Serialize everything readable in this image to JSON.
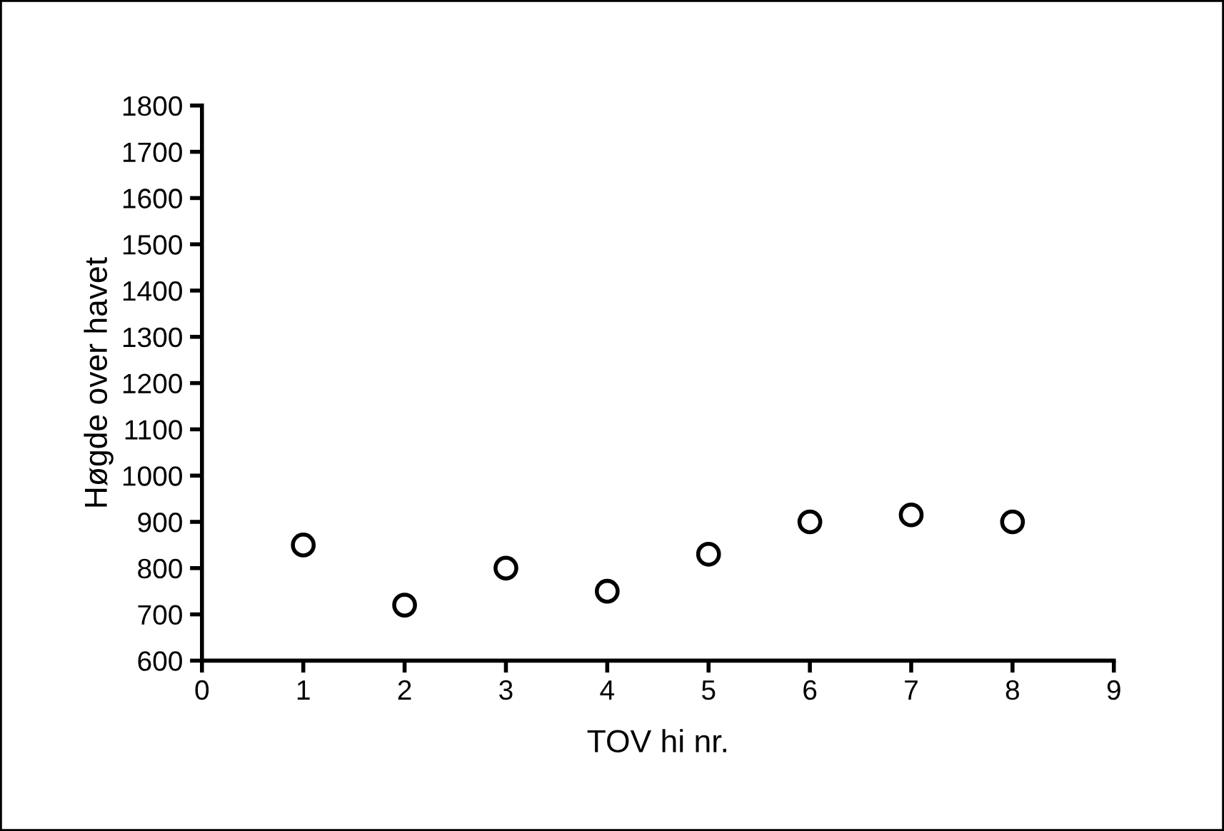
{
  "chart_data": {
    "type": "scatter",
    "xlabel": "TOV hi nr.",
    "ylabel": "Høgde over havet",
    "x": [
      1,
      2,
      3,
      4,
      5,
      6,
      7,
      8
    ],
    "values": [
      850,
      720,
      800,
      750,
      830,
      900,
      915,
      900
    ],
    "color": "#000000",
    "marker": "circle",
    "xlim": [
      0,
      9
    ],
    "xticks": [
      0,
      1,
      2,
      3,
      4,
      5,
      6,
      7,
      8,
      9
    ],
    "ylim": [
      600,
      1800
    ],
    "yticks": [
      600,
      700,
      800,
      900,
      1000,
      1100,
      1200,
      1300,
      1400,
      1500,
      1600,
      1700,
      1800
    ],
    "grid": false
  }
}
